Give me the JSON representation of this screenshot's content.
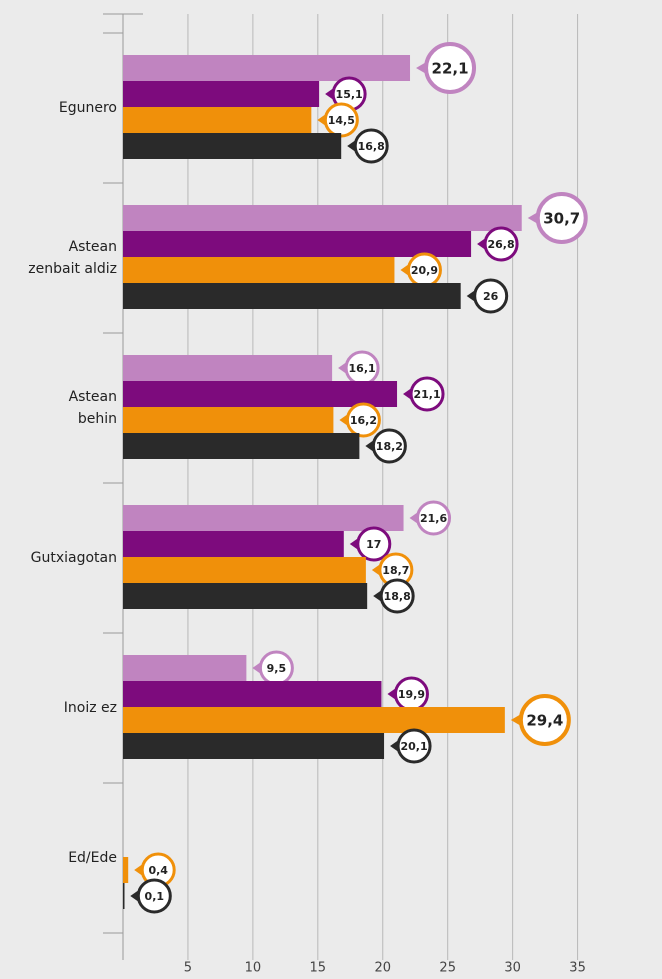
{
  "chart_data": {
    "type": "bar",
    "orientation": "horizontal",
    "categories": [
      "Egunero",
      "Astean\nzenbait aldiz",
      "Astean\nbehin",
      "Gutxiagotan",
      "Inoiz ez",
      "Ed/Ede"
    ],
    "series": [
      {
        "color": "#c084c0",
        "values": [
          22.1,
          30.7,
          16.1,
          21.6,
          9.5,
          null
        ],
        "value_labels": [
          "22,1",
          "30,7",
          "16,1",
          "21,6",
          "9,5",
          null
        ]
      },
      {
        "color": "#7d0b7d",
        "values": [
          15.1,
          26.8,
          21.1,
          17,
          19.9,
          null
        ],
        "value_labels": [
          "15,1",
          "26,8",
          "21,1",
          "17",
          "19,9",
          null
        ]
      },
      {
        "color": "#f0900a",
        "values": [
          14.5,
          20.9,
          16.2,
          18.7,
          29.4,
          0.4
        ],
        "value_labels": [
          "14,5",
          "20,9",
          "16,2",
          "18,7",
          "29,4",
          "0,4"
        ]
      },
      {
        "color": "#2a2a2a",
        "values": [
          16.8,
          26,
          18.2,
          18.8,
          20.1,
          0.1
        ],
        "value_labels": [
          "16,8",
          "26",
          "18,2",
          "18,8",
          "20,1",
          "0,1"
        ]
      }
    ],
    "xlim": [
      0,
      41.5
    ],
    "xticks": [
      5,
      10,
      15,
      20,
      25,
      30,
      35
    ],
    "grid": true
  }
}
